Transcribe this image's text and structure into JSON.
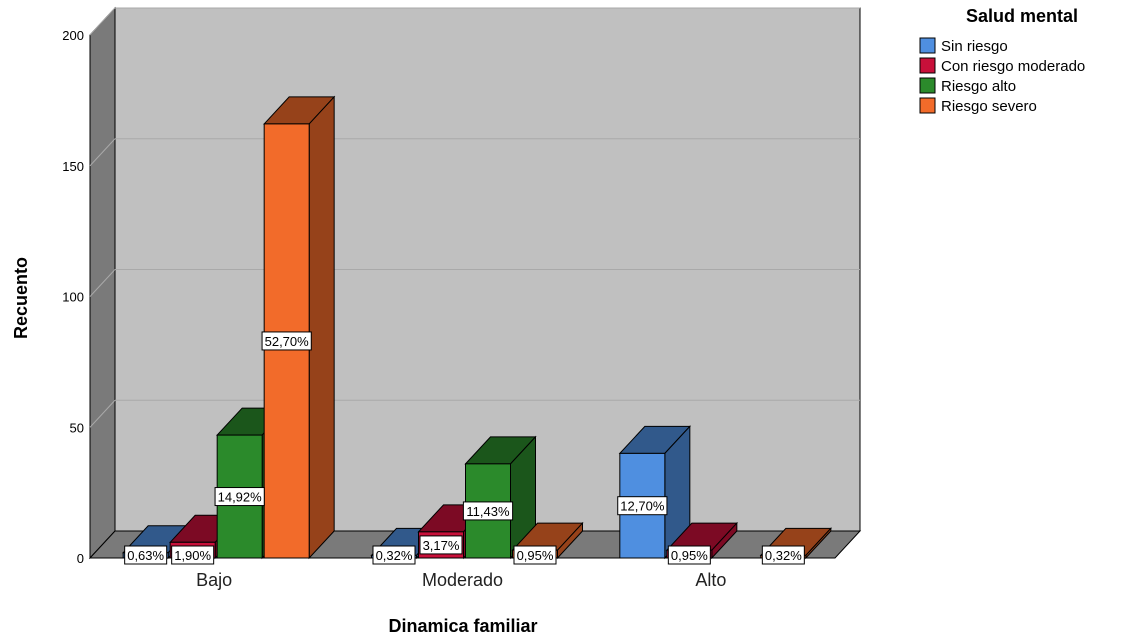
{
  "chart_data": {
    "type": "bar",
    "title": "",
    "xlabel": "Dinamica familiar",
    "ylabel": "Recuento",
    "ylim": [
      0,
      200
    ],
    "yticks": [
      0,
      50,
      100,
      150,
      200
    ],
    "grid": true,
    "legend_position": "top-right",
    "legend_title": "Salud mental",
    "categories": [
      "Bajo",
      "Moderado",
      "Alto"
    ],
    "series": [
      {
        "name": "Sin riesgo",
        "color": "#4f8fe0",
        "values": [
          2,
          1,
          40
        ],
        "labels": [
          "0,63%",
          "0,32%",
          "12,70%"
        ]
      },
      {
        "name": "Con riesgo moderado",
        "color": "#c8103a",
        "values": [
          6,
          10,
          3
        ],
        "labels": [
          "1,90%",
          "3,17%",
          "0,95%"
        ]
      },
      {
        "name": "Riesgo alto",
        "color": "#2b8a2b",
        "values": [
          47,
          36,
          0
        ],
        "labels": [
          "14,92%",
          "11,43%",
          ""
        ]
      },
      {
        "name": "Riesgo severo",
        "color": "#f26b2a",
        "values": [
          166,
          3,
          1
        ],
        "labels": [
          "52,70%",
          "0,95%",
          "0,32%"
        ]
      }
    ]
  }
}
